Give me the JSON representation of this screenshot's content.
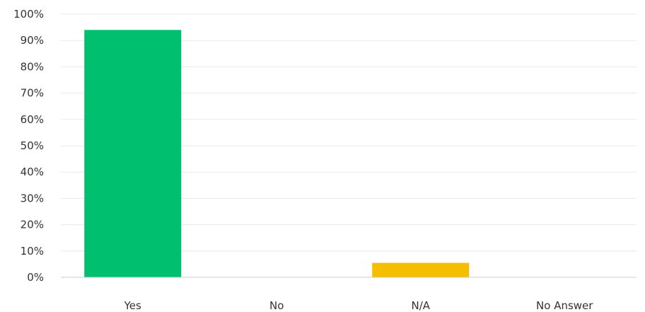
{
  "chart_data": {
    "type": "bar",
    "categories": [
      "Yes",
      "No",
      "N/A",
      "No Answer"
    ],
    "values": [
      94,
      0,
      5.5,
      0
    ],
    "colors": [
      "#00bf6f",
      "#00bf6f",
      "#f5be00",
      "#00bf6f"
    ],
    "ylim": [
      0,
      100
    ],
    "yticks": [
      0,
      10,
      20,
      30,
      40,
      50,
      60,
      70,
      80,
      90,
      100
    ],
    "ytick_labels": [
      "0%",
      "10%",
      "20%",
      "30%",
      "40%",
      "50%",
      "60%",
      "70%",
      "80%",
      "90%",
      "100%"
    ],
    "grid": true,
    "title": "",
    "xlabel": "",
    "ylabel": "",
    "legend": false
  }
}
